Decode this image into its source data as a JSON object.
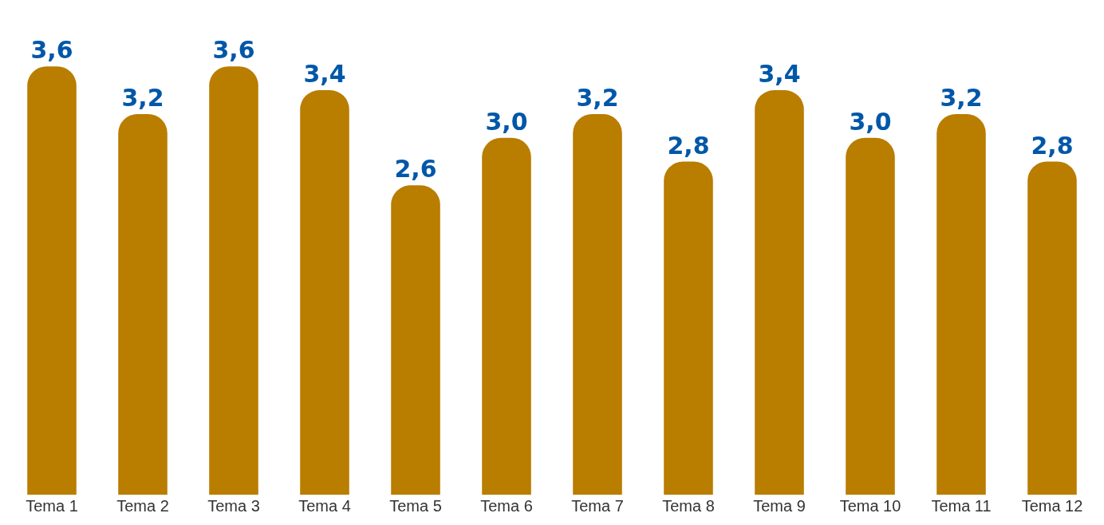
{
  "chart_data": {
    "type": "bar",
    "categories": [
      "Tema 1",
      "Tema 2",
      "Tema 3",
      "Tema 4",
      "Tema 5",
      "Tema 6",
      "Tema 7",
      "Tema 8",
      "Tema 9",
      "Tema 10",
      "Tema 11",
      "Tema 12"
    ],
    "values": [
      3.6,
      3.2,
      3.6,
      3.4,
      2.6,
      3.0,
      3.2,
      2.8,
      3.4,
      3.0,
      3.2,
      2.8
    ],
    "value_labels": [
      "3,6",
      "3,2",
      "3,6",
      "3,4",
      "2,6",
      "3,0",
      "3,2",
      "2,8",
      "3,4",
      "3,0",
      "3,2",
      "2,8"
    ],
    "color": "#b97d00"
  }
}
